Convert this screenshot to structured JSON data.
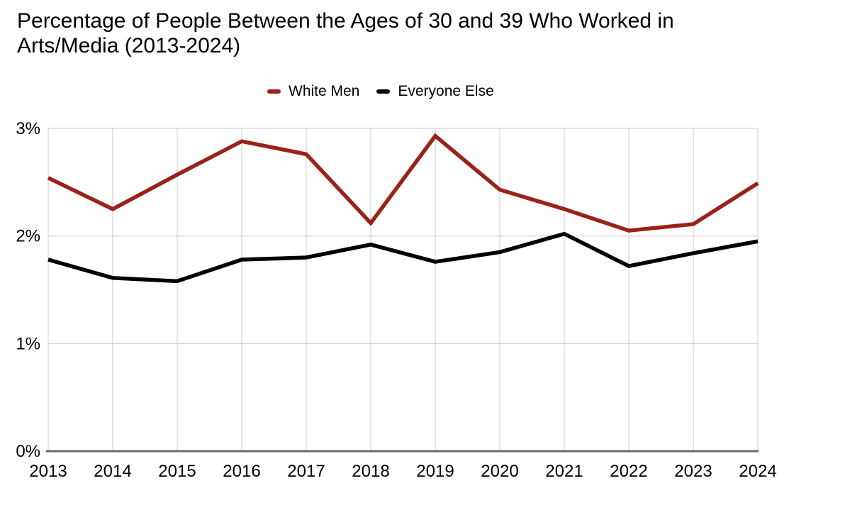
{
  "header": {
    "title": "Percentage of People Between the Ages of 30 and 39 Who Worked in Arts/Media (2013-2024)"
  },
  "colors": {
    "white_men": "#9A2219",
    "everyone_else": "#000000",
    "gridline": "#d8d8d8",
    "axis": "#6b6b6b",
    "text": "#000000",
    "background": "#ffffff"
  },
  "chart_data": {
    "type": "line",
    "title": "Percentage of People Between the Ages of 30 and 39 Who Worked in Arts/Media (2013-2024)",
    "categories": [
      "2013",
      "2014",
      "2015",
      "2016",
      "2017",
      "2018",
      "2019",
      "2020",
      "2021",
      "2022",
      "2023",
      "2024"
    ],
    "series": [
      {
        "name": "White Men",
        "color": "#9A2219",
        "values": [
          2.54,
          2.25,
          2.57,
          2.88,
          2.76,
          2.12,
          2.93,
          2.43,
          2.25,
          2.05,
          2.11,
          2.49
        ]
      },
      {
        "name": "Everyone Else",
        "color": "#000000",
        "values": [
          1.78,
          1.61,
          1.58,
          1.78,
          1.8,
          1.92,
          1.76,
          1.85,
          2.02,
          1.72,
          1.84,
          1.95
        ]
      }
    ],
    "xlabel": "",
    "ylabel": "",
    "ylim": [
      0,
      3
    ],
    "yticks": [
      {
        "value": 0,
        "label": "0%"
      },
      {
        "value": 1,
        "label": "1%"
      },
      {
        "value": 2,
        "label": "2%"
      },
      {
        "value": 3,
        "label": "3%"
      }
    ],
    "grid": true,
    "legend_position": "top-center"
  }
}
